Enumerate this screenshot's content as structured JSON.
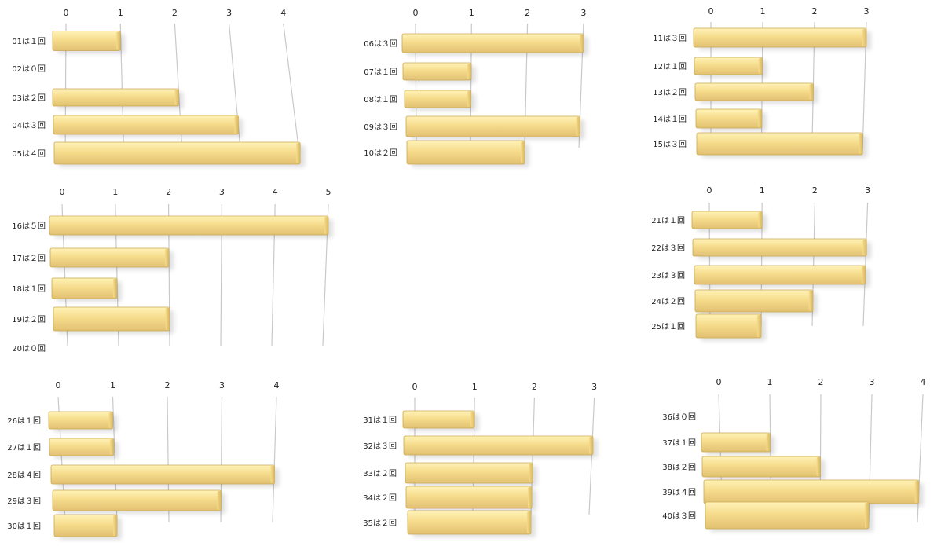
{
  "bar_colors": {
    "top": "#fff3b8",
    "mid": "#f6dc8c",
    "bottom": "#e2c072",
    "end": "#d9b860",
    "edge": "#c9a854"
  },
  "chart_data": [
    {
      "type": "bar",
      "orientation": "horizontal",
      "xlim": [
        0,
        4
      ],
      "ticks": [
        "0",
        "1",
        "2",
        "3",
        "4"
      ],
      "categories": [
        "01は１回",
        "02は０回",
        "03は２回",
        "04は３回",
        "05は４回"
      ],
      "values": [
        1,
        0,
        2,
        3,
        4
      ]
    },
    {
      "type": "bar",
      "orientation": "horizontal",
      "xlim": [
        0,
        3
      ],
      "ticks": [
        "0",
        "1",
        "2",
        "3"
      ],
      "categories": [
        "06は３回",
        "07は１回",
        "08は１回",
        "09は３回",
        "10は２回"
      ],
      "values": [
        3,
        1,
        1,
        3,
        2
      ]
    },
    {
      "type": "bar",
      "orientation": "horizontal",
      "xlim": [
        0,
        3
      ],
      "ticks": [
        "0",
        "1",
        "2",
        "3"
      ],
      "categories": [
        "11は３回",
        "12は１回",
        "13は２回",
        "14は１回",
        "15は３回"
      ],
      "values": [
        3,
        1,
        2,
        1,
        3
      ]
    },
    {
      "type": "bar",
      "orientation": "horizontal",
      "xlim": [
        0,
        5
      ],
      "ticks": [
        "0",
        "1",
        "2",
        "3",
        "4",
        "5"
      ],
      "categories": [
        "16は５回",
        "17は２回",
        "18は１回",
        "19は２回",
        "20は０回"
      ],
      "values": [
        5,
        2,
        1,
        2,
        0
      ]
    },
    {
      "type": "bar",
      "orientation": "horizontal",
      "xlim": [
        0,
        3
      ],
      "ticks": [
        "0",
        "1",
        "2",
        "3"
      ],
      "categories": [
        "21は１回",
        "22は３回",
        "23は３回",
        "24は２回",
        "25は１回"
      ],
      "values": [
        1,
        3,
        3,
        2,
        1
      ]
    },
    {
      "type": "bar",
      "orientation": "horizontal",
      "xlim": [
        0,
        4
      ],
      "ticks": [
        "0",
        "1",
        "2",
        "3",
        "4"
      ],
      "categories": [
        "26は１回",
        "27は１回",
        "28は４回",
        "29は３回",
        "30は１回"
      ],
      "values": [
        1,
        1,
        4,
        3,
        1
      ]
    },
    {
      "type": "bar",
      "orientation": "horizontal",
      "xlim": [
        0,
        3
      ],
      "ticks": [
        "0",
        "1",
        "2",
        "3"
      ],
      "categories": [
        "31は１回",
        "32は３回",
        "33は２回",
        "34は２回",
        "35は２回"
      ],
      "values": [
        1,
        3,
        2,
        2,
        2
      ]
    },
    {
      "type": "bar",
      "orientation": "horizontal",
      "xlim": [
        0,
        4
      ],
      "ticks": [
        "0",
        "1",
        "2",
        "3",
        "4"
      ],
      "categories": [
        "36は０回",
        "37は１回",
        "38は２回",
        "39は４回",
        "40は３回"
      ],
      "values": [
        0,
        1,
        2,
        4,
        3
      ]
    }
  ]
}
